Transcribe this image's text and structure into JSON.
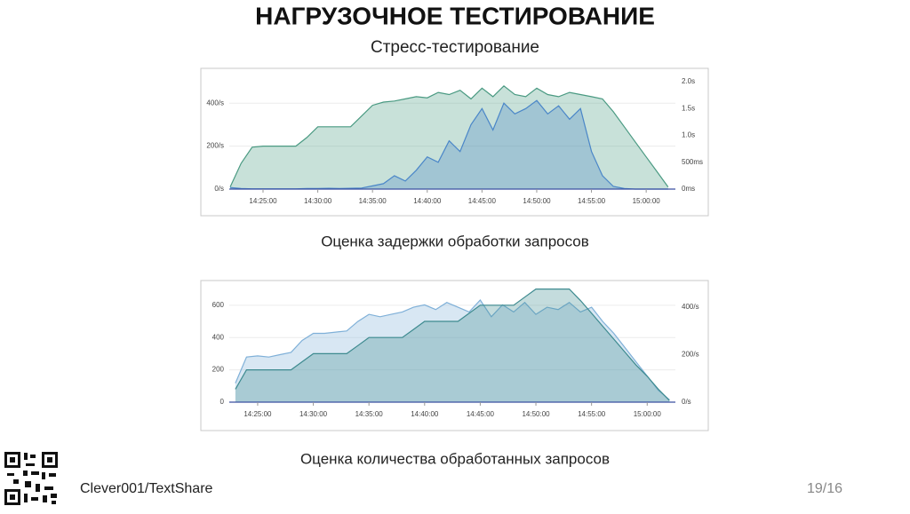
{
  "title": "НАГРУЗОЧНОЕ ТЕСТИРОВАНИЕ",
  "subtitle": "Стресс-тестирование",
  "chart_data": [
    {
      "type": "area",
      "caption": "Оценка задержки обработки запросов",
      "x": [
        "14:22:00",
        "14:23:00",
        "14:24:00",
        "14:25:00",
        "14:26:00",
        "14:27:00",
        "14:28:00",
        "14:29:00",
        "14:30:00",
        "14:31:00",
        "14:32:00",
        "14:33:00",
        "14:34:00",
        "14:35:00",
        "14:36:00",
        "14:37:00",
        "14:38:00",
        "14:39:00",
        "14:40:00",
        "14:41:00",
        "14:42:00",
        "14:43:00",
        "14:44:00",
        "14:45:00",
        "14:46:00",
        "14:47:00",
        "14:48:00",
        "14:49:00",
        "14:50:00",
        "14:51:00",
        "14:52:00",
        "14:53:00",
        "14:54:00",
        "14:55:00",
        "14:56:00",
        "14:57:00",
        "14:58:00",
        "14:59:00",
        "15:00:00",
        "15:01:00",
        "15:02:00"
      ],
      "xlim": [
        "14:21:55",
        "15:02:40"
      ],
      "xticks": [
        "14:25:00",
        "14:30:00",
        "14:35:00",
        "14:40:00",
        "14:45:00",
        "14:50:00",
        "14:55:00",
        "15:00:00"
      ],
      "ylim": [
        0,
        500
      ],
      "yticks": [
        {
          "value": 0,
          "label": "0/s"
        },
        {
          "value": 200,
          "label": "200/s"
        },
        {
          "value": 400,
          "label": "400/s"
        }
      ],
      "y2lim": [
        0,
        2000
      ],
      "y2ticks": [
        {
          "value": 0,
          "label": "0ms"
        },
        {
          "value": 500,
          "label": "500ms"
        },
        {
          "value": 1000,
          "label": "1.0s"
        },
        {
          "value": 1500,
          "label": "1.5s"
        },
        {
          "value": 2000,
          "label": "2.0s"
        }
      ],
      "grid": true,
      "series": [
        {
          "color": "#4a9a82",
          "axis": "y",
          "values": [
            10,
            120,
            195,
            200,
            200,
            200,
            200,
            240,
            290,
            290,
            290,
            290,
            340,
            390,
            405,
            410,
            420,
            430,
            425,
            450,
            440,
            460,
            420,
            470,
            430,
            480,
            440,
            430,
            470,
            440,
            430,
            450,
            440,
            430,
            420,
            360,
            290,
            220,
            150,
            80,
            10
          ]
        },
        {
          "color": "#4a86c8",
          "axis": "y2",
          "values": [
            30,
            10,
            5,
            5,
            5,
            5,
            5,
            10,
            10,
            15,
            10,
            15,
            20,
            60,
            100,
            250,
            150,
            350,
            600,
            500,
            900,
            700,
            1200,
            1500,
            1100,
            1600,
            1400,
            1500,
            1650,
            1400,
            1550,
            1300,
            1500,
            700,
            250,
            50,
            10,
            0,
            0,
            0,
            0
          ]
        }
      ]
    },
    {
      "type": "area",
      "caption": "Оценка количества обработанных запросов",
      "x": [
        "14:23:00",
        "14:24:00",
        "14:25:00",
        "14:26:00",
        "14:27:00",
        "14:28:00",
        "14:29:00",
        "14:30:00",
        "14:31:00",
        "14:32:00",
        "14:33:00",
        "14:34:00",
        "14:35:00",
        "14:36:00",
        "14:37:00",
        "14:38:00",
        "14:39:00",
        "14:40:00",
        "14:41:00",
        "14:42:00",
        "14:43:00",
        "14:44:00",
        "14:45:00",
        "14:46:00",
        "14:47:00",
        "14:48:00",
        "14:49:00",
        "14:50:00",
        "14:51:00",
        "14:52:00",
        "14:53:00",
        "14:54:00",
        "14:55:00",
        "14:56:00",
        "14:57:00",
        "14:58:00",
        "14:59:00",
        "15:00:00",
        "15:01:00",
        "15:02:00"
      ],
      "xlim": [
        "14:22:27",
        "15:02:32"
      ],
      "xticks": [
        "14:25:00",
        "14:30:00",
        "14:35:00",
        "14:40:00",
        "14:45:00",
        "14:50:00",
        "14:55:00",
        "15:00:00"
      ],
      "ylim": [
        0,
        720
      ],
      "yticks": [
        0,
        200,
        400,
        600
      ],
      "y2lim": [
        0,
        490
      ],
      "y2ticks": [
        {
          "value": 0,
          "label": "0/s"
        },
        {
          "value": 200,
          "label": "200/s"
        },
        {
          "value": 400,
          "label": "400/s"
        }
      ],
      "grid": true,
      "series": [
        {
          "color": "#7fb0d8",
          "axis": "y2",
          "values": [
            80,
            190,
            195,
            190,
            200,
            210,
            260,
            290,
            290,
            295,
            300,
            340,
            370,
            360,
            370,
            380,
            400,
            410,
            390,
            420,
            400,
            380,
            430,
            360,
            410,
            380,
            420,
            370,
            400,
            390,
            420,
            380,
            400,
            340,
            290,
            230,
            170,
            110,
            50,
            10
          ]
        },
        {
          "color": "#3d8a8f",
          "axis": "y",
          "values": [
            80,
            200,
            200,
            200,
            200,
            200,
            250,
            300,
            300,
            300,
            300,
            350,
            400,
            400,
            400,
            400,
            450,
            500,
            500,
            500,
            500,
            550,
            600,
            600,
            600,
            600,
            650,
            700,
            700,
            700,
            700,
            630,
            550,
            470,
            390,
            310,
            230,
            160,
            80,
            10
          ]
        }
      ]
    }
  ],
  "footer": {
    "source": "Clever001/TextShare",
    "page": "19/16"
  }
}
